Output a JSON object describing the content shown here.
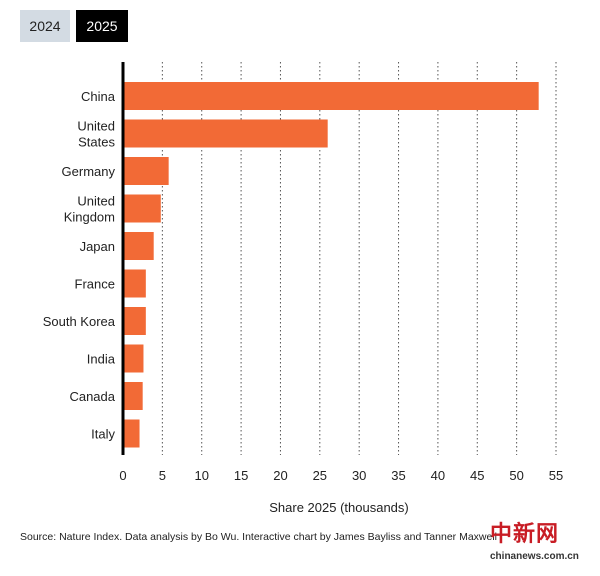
{
  "tabs": [
    {
      "label": "2024",
      "active": false
    },
    {
      "label": "2025",
      "active": true
    }
  ],
  "chart_data": {
    "type": "bar",
    "orientation": "horizontal",
    "title": "",
    "xlabel": "Share 2025 (thousands)",
    "ylabel": "",
    "xlim": [
      0,
      55
    ],
    "xticks": [
      0,
      5,
      10,
      15,
      20,
      25,
      30,
      35,
      40,
      45,
      50,
      55
    ],
    "grid": true,
    "bar_color": "#f26a36",
    "categories": [
      [
        "China"
      ],
      [
        "United",
        "States"
      ],
      [
        "Germany"
      ],
      [
        "United",
        "Kingdom"
      ],
      [
        "Japan"
      ],
      [
        "France"
      ],
      [
        "South Korea"
      ],
      [
        "India"
      ],
      [
        "Canada"
      ],
      [
        "Italy"
      ]
    ],
    "values": [
      52.8,
      26.0,
      5.8,
      4.8,
      3.9,
      2.9,
      2.9,
      2.6,
      2.5,
      2.1
    ]
  },
  "source": "Source: Nature Index. Data analysis by Bo Wu. Interactive chart by James Bayliss and Tanner Maxwell",
  "watermark": {
    "main": "中新网",
    "sub": "chinanews.com.cn"
  }
}
